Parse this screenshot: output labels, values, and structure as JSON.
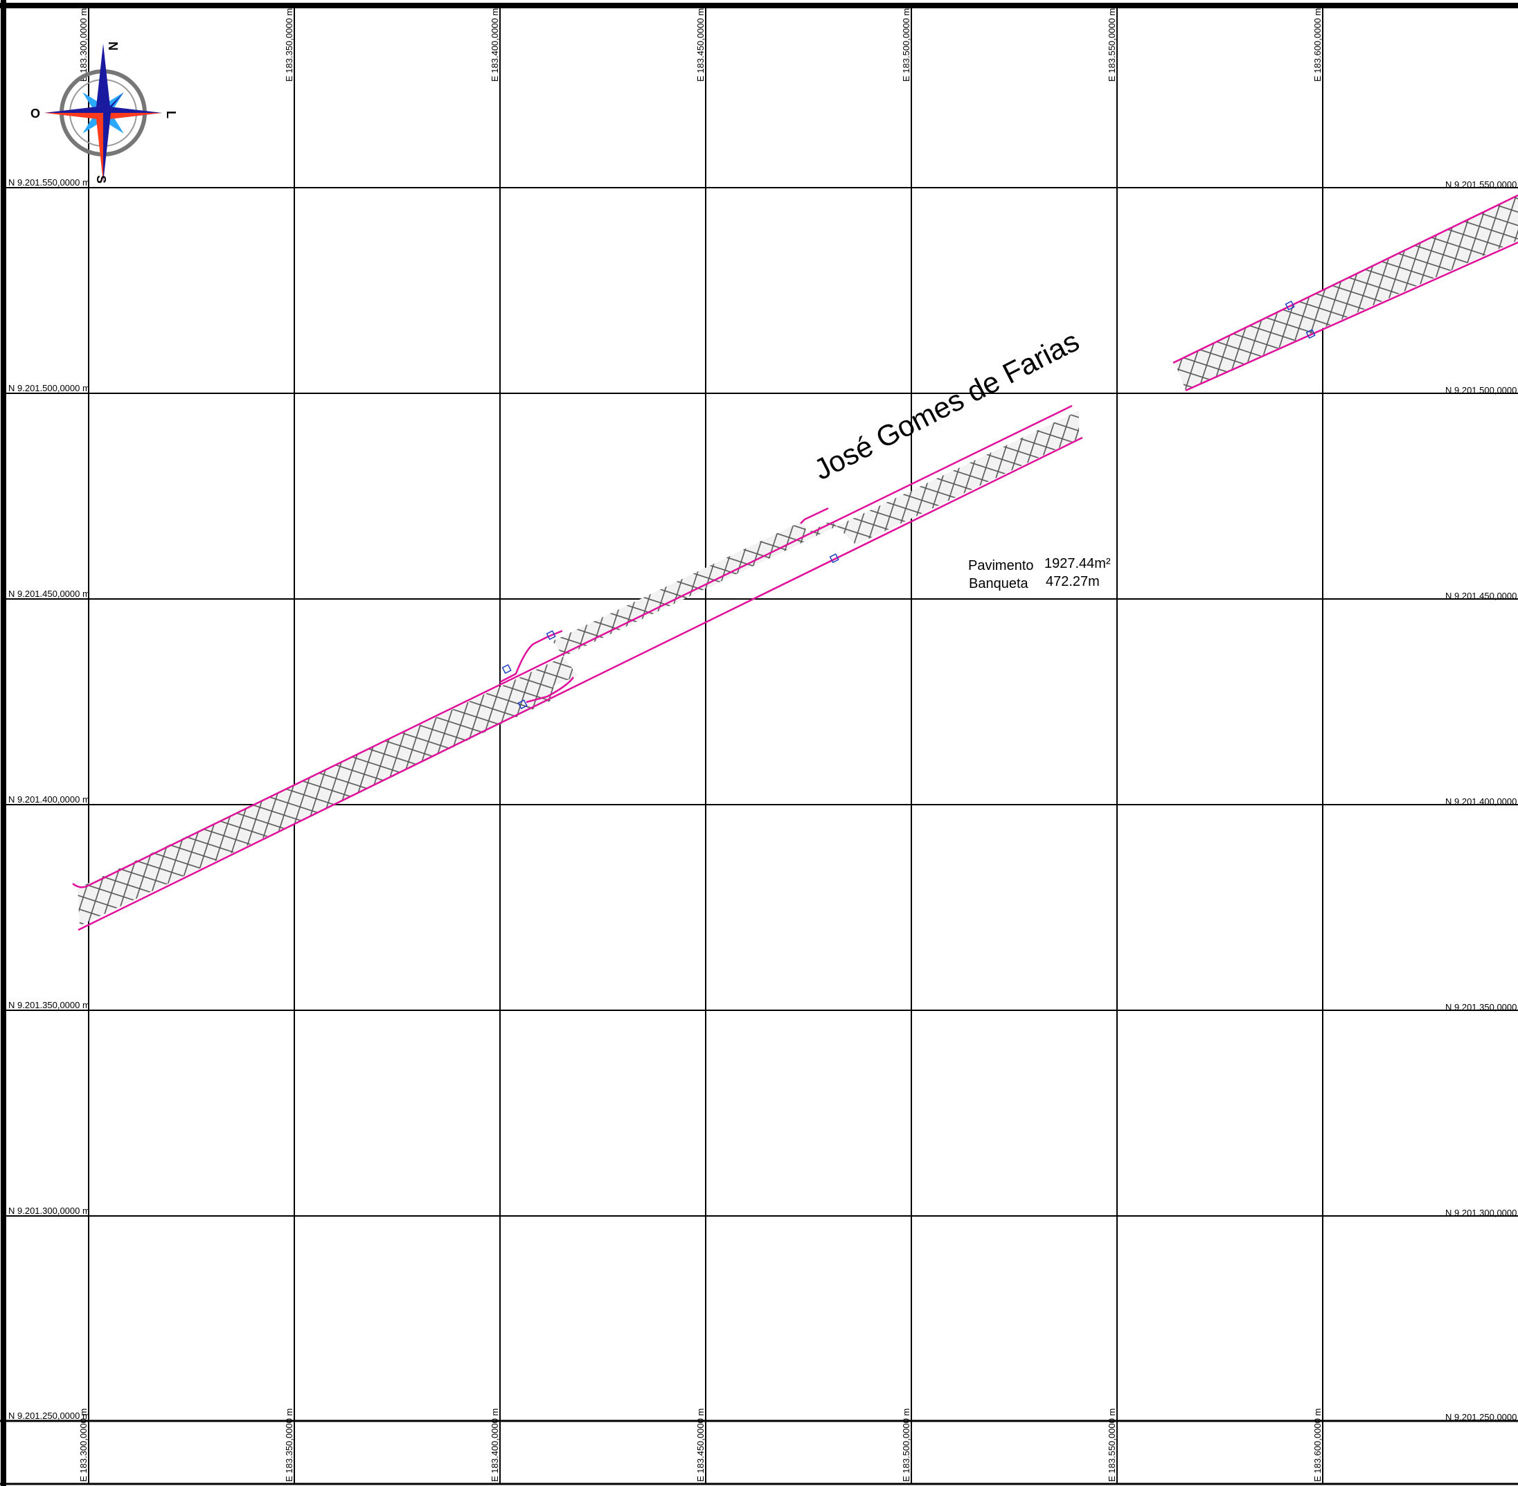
{
  "street": {
    "name": "José Gomes de Farias"
  },
  "stats": {
    "pavement_label": "Pavimento",
    "pavement_value": "1927.44m²",
    "curb_label": "Banqueta",
    "curb_value": "472.27m"
  },
  "compass": {
    "north": "N",
    "south": "S",
    "east": "L",
    "west": "O"
  },
  "grid": {
    "easting_labels": [
      "E 183.300,0000 m",
      "E 183.350,0000 m",
      "E 183.400,0000 m",
      "E 183.450,0000 m",
      "E 183.500,0000 m",
      "E 183.550,0000 m",
      "E 183.600,0000 m"
    ],
    "northing_labels": [
      "N 9.201.550,0000 m",
      "N 9.201.500,0000 m",
      "N 9.201.450,0000 m",
      "N 9.201.400,0000 m",
      "N 9.201.350,0000 m",
      "N 9.201.300,0000 m",
      "N 9.201.250,0000 m"
    ]
  },
  "colors": {
    "road_outline": "#e0109a",
    "hatch": "#555555",
    "grid": "#000000",
    "compass_blue": "#1a1aa0",
    "compass_red": "#ff3b1f",
    "compass_light_blue": "#2aa8ff"
  }
}
